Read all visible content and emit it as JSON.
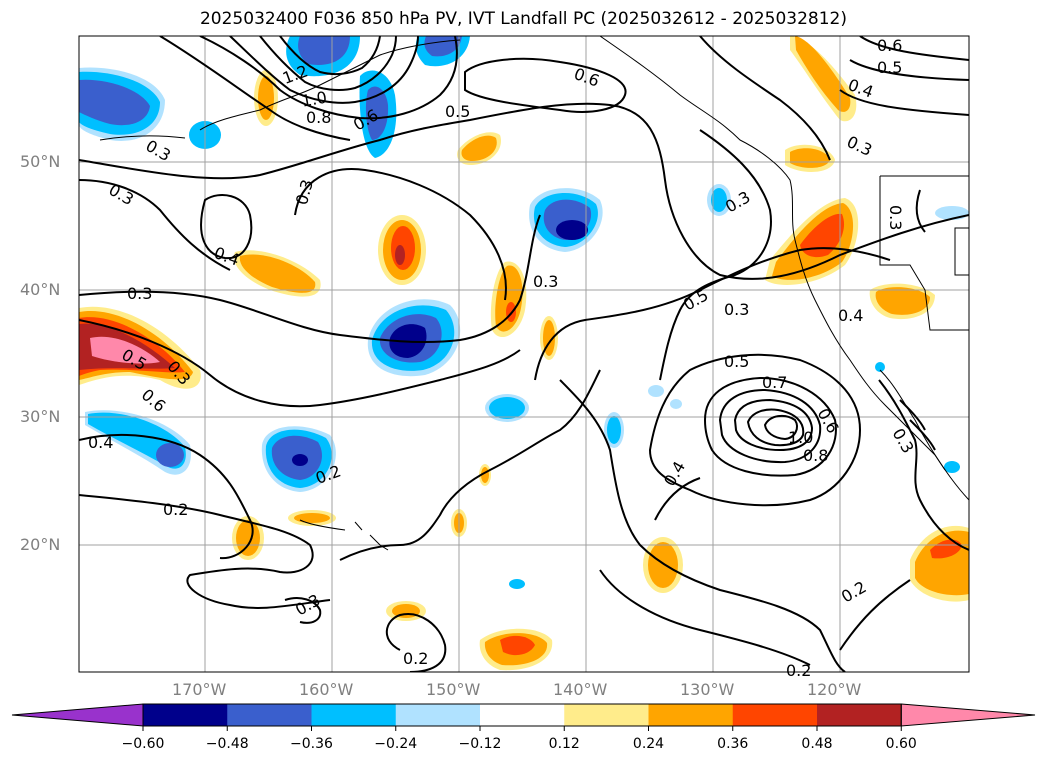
{
  "title": "2025032400 F036 850 hPa PV, IVT Landfall PC (2025032612 - 2025032812)",
  "lat_labels": [
    "50°N",
    "40°N",
    "30°N",
    "20°N"
  ],
  "lon_labels": [
    "170°W",
    "160°W",
    "150°W",
    "140°W",
    "130°W",
    "120°W"
  ],
  "contour_labels": [
    "0.6",
    "0.5",
    "0.4",
    "0.3",
    "1.2",
    "1.0",
    "0.8",
    "0.6",
    "0.5",
    "0.6",
    "0.3",
    "0.3",
    "0.3",
    "0.4",
    "0.5",
    "0.3",
    "0.3",
    "0.4",
    "0.3",
    "0.3",
    "0.5",
    "0.3",
    "0.6",
    "0.4",
    "0.2",
    "0.5",
    "0.7",
    "0.6",
    "1.0",
    "0.8",
    "0.4",
    "0.2",
    "0.3",
    "0.2",
    "0.2",
    "0.2",
    "0.3",
    "0.3"
  ],
  "colorbar": {
    "ticks": [
      "−0.60",
      "−0.48",
      "−0.36",
      "−0.24",
      "−0.12",
      "0.12",
      "0.24",
      "0.36",
      "0.48",
      "0.60"
    ],
    "colors": [
      "#9932CC",
      "#00008B",
      "#3A5FCD",
      "#00BFFF",
      "#B0E2FF",
      "#FFFFFF",
      "#FFEC8B",
      "#FFA500",
      "#FF4500",
      "#B22222",
      "#FF88AA"
    ]
  }
}
